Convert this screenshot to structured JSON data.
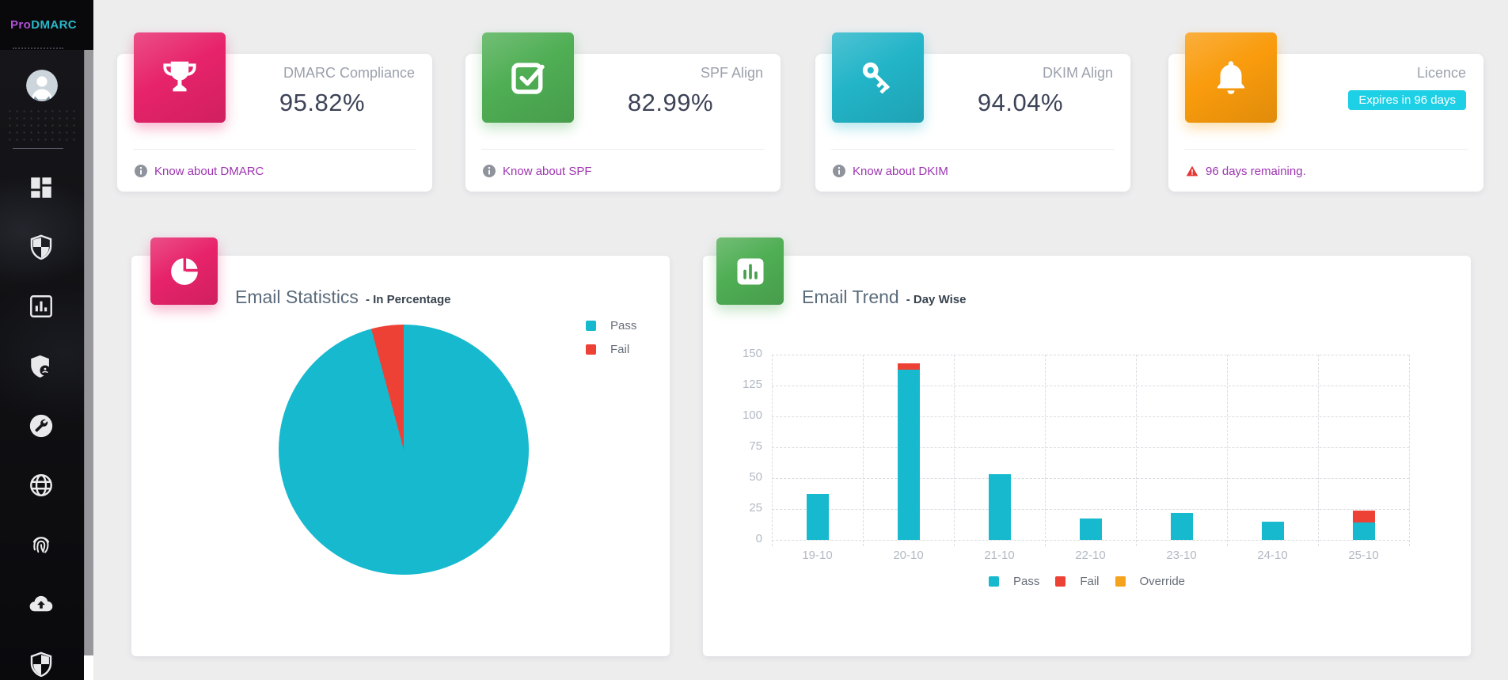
{
  "sidebar": {
    "logo_prefix": "Pro",
    "logo_suffix": "DMARC",
    "logo_prefix_color": "#b04fd8",
    "logo_suffix_color": "#29b7c9",
    "nav_icons": [
      "dashboard-icon",
      "shield-icon",
      "analytics-icon",
      "user-shield-icon",
      "tools-icon",
      "globe-icon",
      "fingerprint-icon",
      "cloud-upload-icon",
      "threat-shield-icon"
    ]
  },
  "stat_cards": [
    {
      "icon": "trophy-icon",
      "color": "#e7236a",
      "title": "DMARC Compliance",
      "value": "95.82%",
      "footer_link": "Know about DMARC"
    },
    {
      "icon": "check-square-icon",
      "color": "#4fae54",
      "title": "SPF Align",
      "value": "82.99%",
      "footer_link": "Know about SPF"
    },
    {
      "icon": "key-icon",
      "color": "#22b4c8",
      "title": "DKIM Align",
      "value": "94.04%",
      "footer_link": "Know about DKIM"
    },
    {
      "icon": "bell-icon",
      "color": "#f99b0c",
      "title": "Licence",
      "badge": "Expires in 96 days",
      "badge_color": "#1dd0e6",
      "footer_warning": "96 days remaining."
    }
  ],
  "chart_data": [
    {
      "type": "pie",
      "title": "Email Statistics",
      "subtitle": "- In Percentage",
      "tile_icon": "pie-chart-icon",
      "tile_color": "#e7236a",
      "labels": [
        "Pass",
        "Fail"
      ],
      "values": [
        95.82,
        4.18
      ],
      "colors": [
        "#16b9ce",
        "#ee4136"
      ],
      "legend_position": "right"
    },
    {
      "type": "bar",
      "stacked": true,
      "title": "Email Trend",
      "subtitle": "- Day Wise",
      "tile_icon": "bar-chart-icon",
      "tile_color": "#4fae54",
      "categories": [
        "19-10",
        "20-10",
        "21-10",
        "22-10",
        "23-10",
        "24-10",
        "25-10"
      ],
      "series": [
        {
          "name": "Pass",
          "color": "#16b9ce",
          "values": [
            37,
            138,
            53,
            17,
            22,
            15,
            14
          ]
        },
        {
          "name": "Fail",
          "color": "#ee4136",
          "values": [
            0,
            5,
            0,
            0,
            0,
            0,
            10
          ]
        },
        {
          "name": "Override",
          "color": "#f5a31c",
          "values": [
            0,
            0,
            0,
            0,
            0,
            0,
            0
          ]
        }
      ],
      "ylim": [
        0,
        150
      ],
      "ytick_step": 25,
      "grid": "dashed",
      "legend_position": "bottom",
      "axis_color": "#b3b9c4"
    }
  ]
}
